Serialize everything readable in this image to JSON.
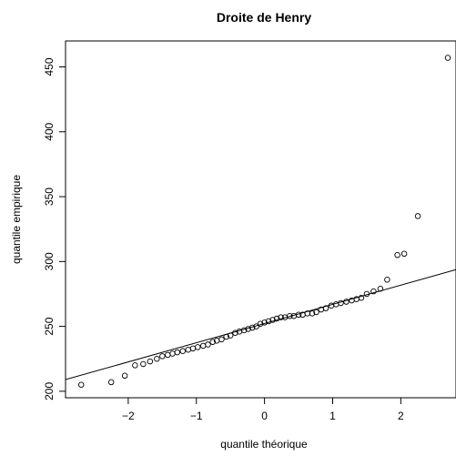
{
  "chart_data": {
    "type": "scatter",
    "title": "Droite de Henry",
    "x_label": "quantile théorique",
    "y_label": "quantile empirique",
    "xlim": [
      -2.92,
      2.81
    ],
    "ylim": [
      195,
      470
    ],
    "xticks": [
      {
        "value": -2,
        "label": "−2"
      },
      {
        "value": -1,
        "label": "−1"
      },
      0,
      1,
      2
    ],
    "yticks": [
      200,
      250,
      300,
      350,
      400,
      450
    ],
    "color": "#000000",
    "reference_line": {
      "intercept": 252.2,
      "slope": 14.8
    },
    "x": [
      -2.69,
      -2.25,
      -2.05,
      -1.9,
      -1.78,
      -1.68,
      -1.58,
      -1.5,
      -1.42,
      -1.35,
      -1.28,
      -1.2,
      -1.12,
      -1.05,
      -0.98,
      -0.9,
      -0.83,
      -0.76,
      -0.7,
      -0.63,
      -0.56,
      -0.5,
      -0.43,
      -0.37,
      -0.3,
      -0.24,
      -0.18,
      -0.12,
      -0.06,
      0,
      0.06,
      0.12,
      0.18,
      0.24,
      0.3,
      0.37,
      0.43,
      0.5,
      0.56,
      0.63,
      0.7,
      0.76,
      0.83,
      0.9,
      0.98,
      1.05,
      1.12,
      1.2,
      1.28,
      1.35,
      1.42,
      1.5,
      1.6,
      1.7,
      1.8,
      1.95,
      2.05,
      2.25,
      2.69
    ],
    "values": [
      205,
      207,
      212,
      220,
      221,
      223,
      225,
      227,
      228,
      229,
      230,
      231,
      232,
      233,
      234,
      235,
      236,
      238,
      239,
      240,
      242,
      243,
      245,
      246,
      247,
      248,
      249,
      250,
      252,
      253,
      254,
      255,
      256,
      257,
      257,
      258,
      258,
      259,
      259,
      260,
      260,
      261,
      263,
      264,
      266,
      267,
      268,
      269,
      270,
      271,
      272,
      275,
      277,
      279,
      286,
      305,
      306,
      335,
      457
    ]
  }
}
